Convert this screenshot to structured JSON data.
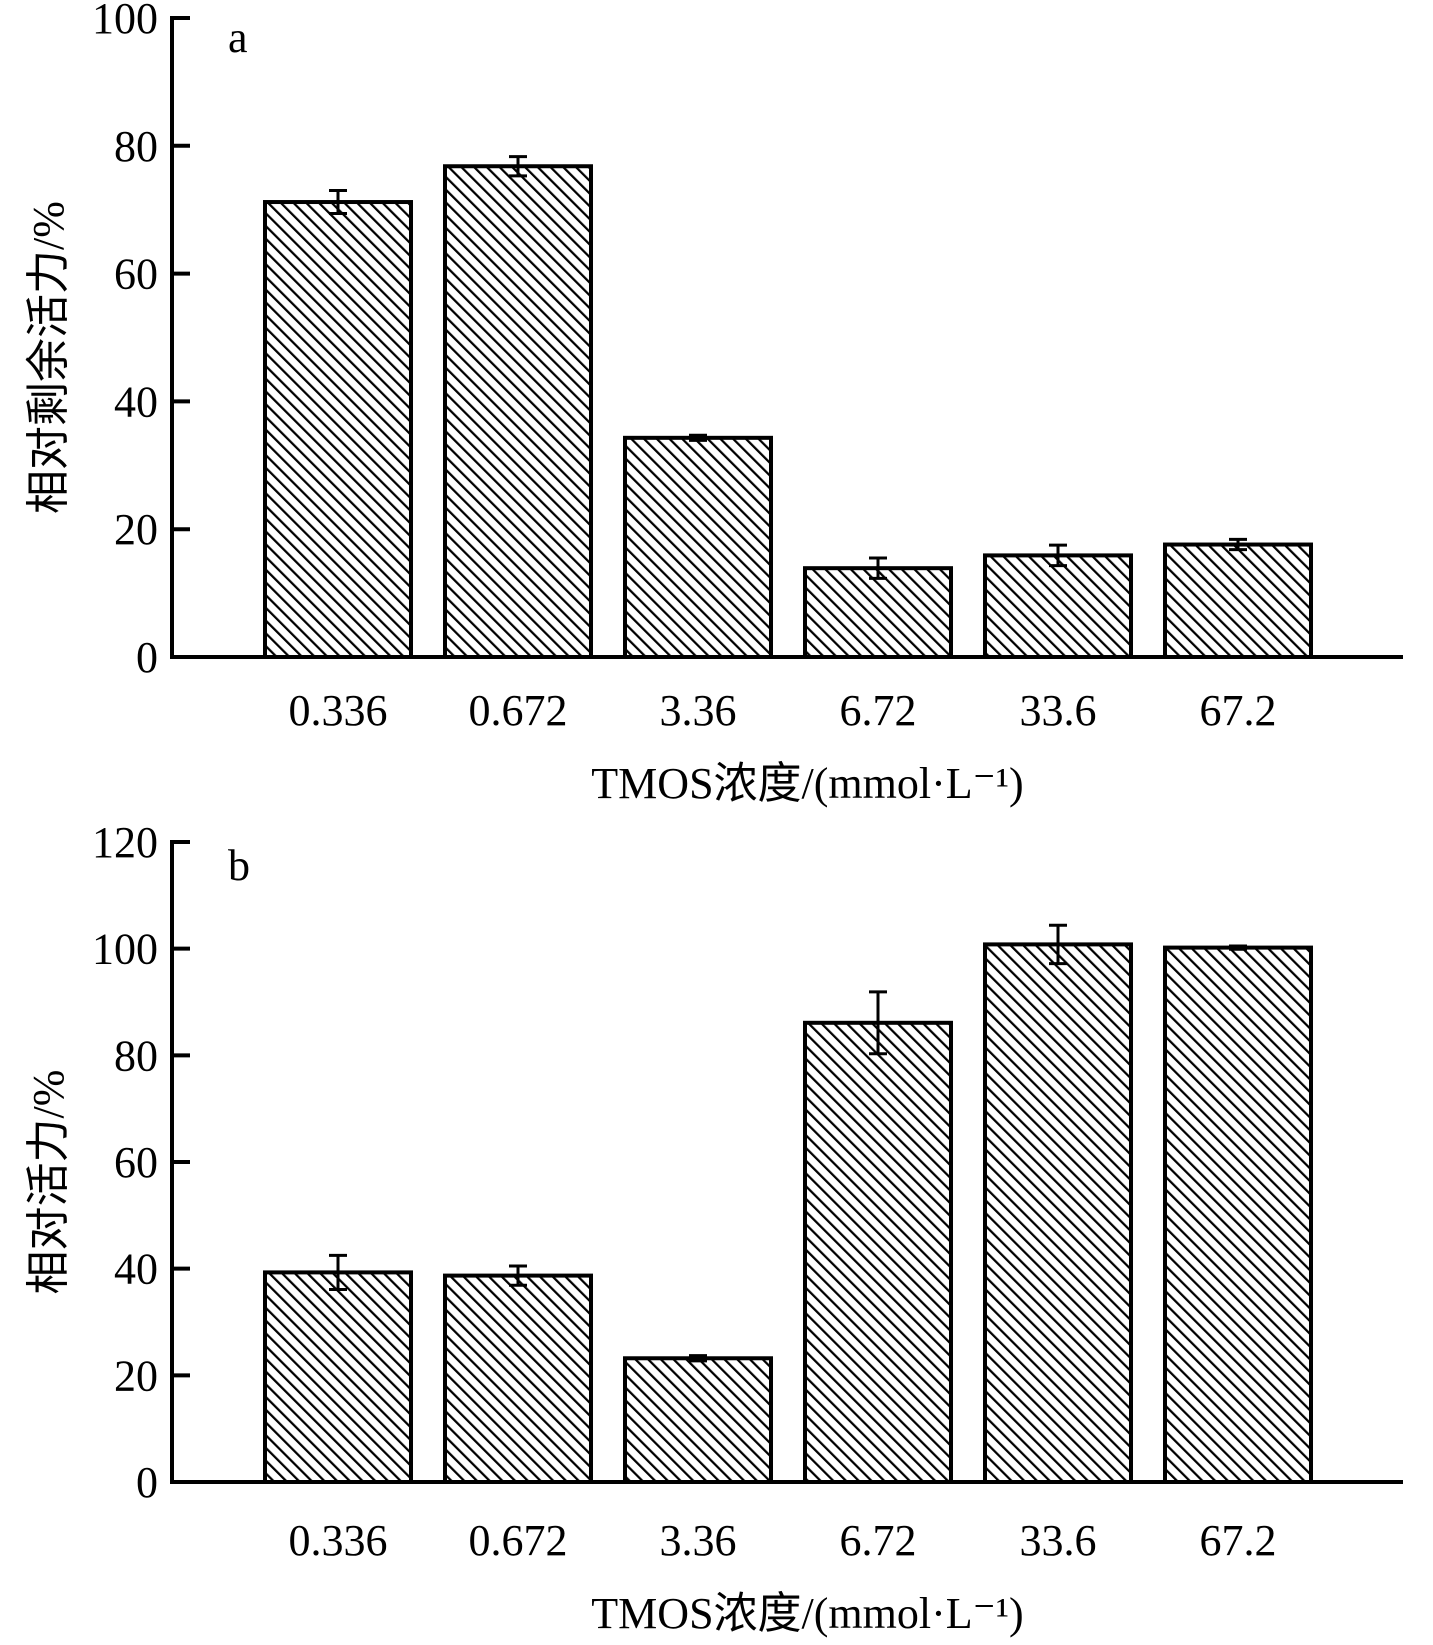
{
  "colors": {
    "bar_fill": "#ffffff",
    "hatch": "#000000",
    "axis": "#000000"
  },
  "chart_data": [
    {
      "type": "bar",
      "panel_label": "a",
      "categories": [
        "0.336",
        "0.672",
        "3.36",
        "6.72",
        "33.6",
        "67.2"
      ],
      "values": [
        71.2,
        76.8,
        34.3,
        13.9,
        15.9,
        17.6
      ],
      "errors": [
        1.8,
        1.5,
        0.4,
        1.6,
        1.6,
        0.8
      ],
      "xlabel": "TMOS浓度/(mmol·L⁻¹)",
      "ylabel": "相对剩余活力/%",
      "ylim": [
        0,
        100
      ],
      "yticks": [
        "0",
        "20",
        "40",
        "60",
        "80",
        "100"
      ],
      "pattern": "diagonal-hatch"
    },
    {
      "type": "bar",
      "panel_label": "b",
      "categories": [
        "0.336",
        "0.672",
        "3.36",
        "6.72",
        "33.6",
        "67.2"
      ],
      "values": [
        39.3,
        38.7,
        23.2,
        86.1,
        100.8,
        100.2
      ],
      "errors": [
        3.2,
        1.8,
        0.5,
        5.8,
        3.6,
        0.3
      ],
      "xlabel": "TMOS浓度/(mmol·L⁻¹)",
      "ylabel": "相对活力/%",
      "ylim": [
        0,
        120
      ],
      "yticks": [
        "0",
        "20",
        "40",
        "60",
        "80",
        "100",
        "120"
      ],
      "pattern": "diagonal-hatch"
    }
  ]
}
